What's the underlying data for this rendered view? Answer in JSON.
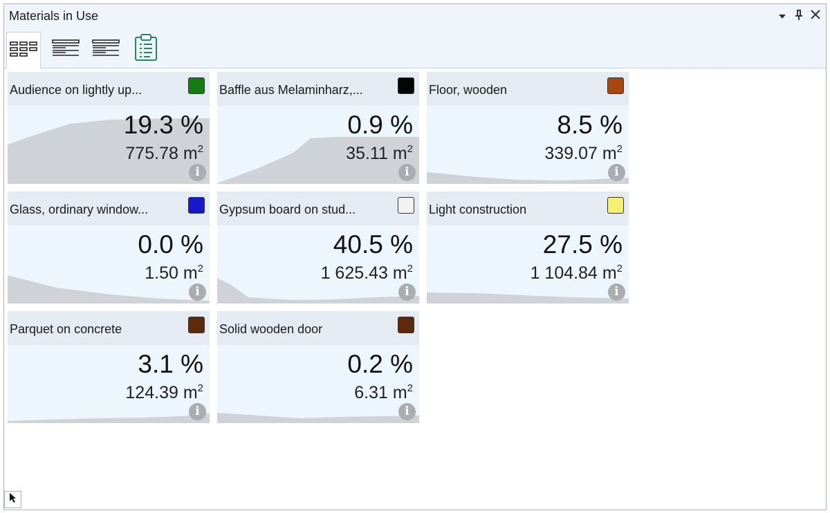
{
  "window": {
    "title": "Materials in Use",
    "controls": [
      "dropdown-icon",
      "pin-icon",
      "close-icon"
    ]
  },
  "toolbar": {
    "views": [
      {
        "icon": "tiles-view-icon",
        "active": true
      },
      {
        "icon": "list-view-icon",
        "active": false
      },
      {
        "icon": "details-view-icon",
        "active": false
      },
      {
        "icon": "clipboard-icon",
        "active": false
      }
    ]
  },
  "materials": [
    {
      "name": "Audience on lightly up...",
      "color": "#137a16",
      "percent": "19.3 %",
      "area": "775.78 m",
      "area_unit_sup": "2"
    },
    {
      "name": "Baffle aus Melaminharz,...",
      "color": "#050505",
      "percent": "0.9 %",
      "area": "35.11 m",
      "area_unit_sup": "2"
    },
    {
      "name": "Floor, wooden",
      "color": "#a8470e",
      "percent": "8.5 %",
      "area": "339.07 m",
      "area_unit_sup": "2"
    },
    {
      "name": "Glass, ordinary window...",
      "color": "#1719c8",
      "percent": "0.0 %",
      "area": "1.50 m",
      "area_unit_sup": "2"
    },
    {
      "name": "Gypsum board on stud...",
      "color": "#f2f2f2",
      "percent": "40.5 %",
      "area": "1 625.43 m",
      "area_unit_sup": "2"
    },
    {
      "name": "Light construction",
      "color": "#f5ef74",
      "percent": "27.5 %",
      "area": "1 104.84 m",
      "area_unit_sup": "2"
    },
    {
      "name": "Parquet on concrete",
      "color": "#5e2a0e",
      "percent": "3.1 %",
      "area": "124.39 m",
      "area_unit_sup": "2"
    },
    {
      "name": "Solid wooden door",
      "color": "#5e2a0e",
      "percent": "0.2 %",
      "area": "6.31 m",
      "area_unit_sup": "2"
    }
  ],
  "status": {
    "pointer_icon": "pointer-icon"
  }
}
